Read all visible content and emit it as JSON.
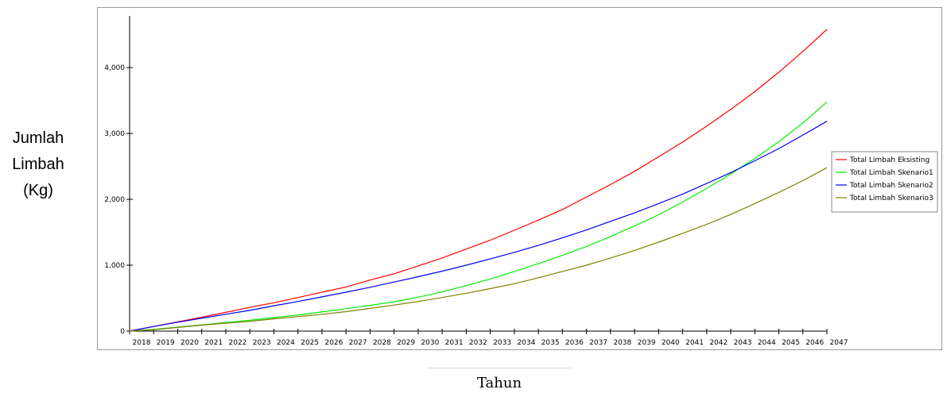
{
  "chart_data": {
    "type": "line",
    "ylabel_lines": [
      "Jumlah",
      "Limbah",
      "(Kg)"
    ],
    "xlabel": "Tahun",
    "x": [
      "2018",
      "2019",
      "2020",
      "2021",
      "2022",
      "2023",
      "2024",
      "2025",
      "2026",
      "2027",
      "2028",
      "2029",
      "2030",
      "2031",
      "2032",
      "2033",
      "2034",
      "2035",
      "2036",
      "2037",
      "2038",
      "2039",
      "2040",
      "2041",
      "2042",
      "2043",
      "2044",
      "2045",
      "2046",
      "2047"
    ],
    "ylim": [
      0,
      4700
    ],
    "yticks": [
      0,
      1000,
      2000,
      3000,
      4000
    ],
    "ytick_labels": [
      "0",
      "1,000",
      "2,000",
      "3,000",
      "4,000"
    ],
    "grid": false,
    "legend_position": "right",
    "series": [
      {
        "name": "Total Limbah Eksisting",
        "color": "#ff0000",
        "values": [
          0,
          70,
          140,
          210,
          285,
          360,
          430,
          510,
          590,
          670,
          775,
          870,
          990,
          1110,
          1245,
          1380,
          1530,
          1685,
          1845,
          2035,
          2225,
          2425,
          2645,
          2870,
          3110,
          3365,
          3635,
          3930,
          4245,
          4580
        ]
      },
      {
        "name": "Total Limbah Skenario1",
        "color": "#00ee00",
        "values": [
          0,
          25,
          60,
          95,
          130,
          165,
          205,
          245,
          290,
          340,
          390,
          445,
          515,
          595,
          690,
          790,
          905,
          1025,
          1150,
          1285,
          1435,
          1595,
          1765,
          1960,
          2165,
          2385,
          2620,
          2875,
          3160,
          3475
        ]
      },
      {
        "name": "Total Limbah Skenario2",
        "color": "#0000ee",
        "values": [
          0,
          70,
          135,
          195,
          255,
          315,
          385,
          450,
          520,
          590,
          665,
          745,
          825,
          910,
          1000,
          1095,
          1195,
          1300,
          1415,
          1535,
          1665,
          1795,
          1935,
          2080,
          2240,
          2405,
          2585,
          2770,
          2975,
          3185
        ]
      },
      {
        "name": "Total Limbah Skenario3",
        "color": "#808000",
        "values": [
          0,
          20,
          55,
          90,
          120,
          150,
          185,
          220,
          255,
          295,
          345,
          395,
          450,
          510,
          575,
          645,
          720,
          810,
          905,
          1000,
          1110,
          1225,
          1350,
          1485,
          1620,
          1770,
          1935,
          2105,
          2285,
          2480
        ]
      }
    ]
  }
}
